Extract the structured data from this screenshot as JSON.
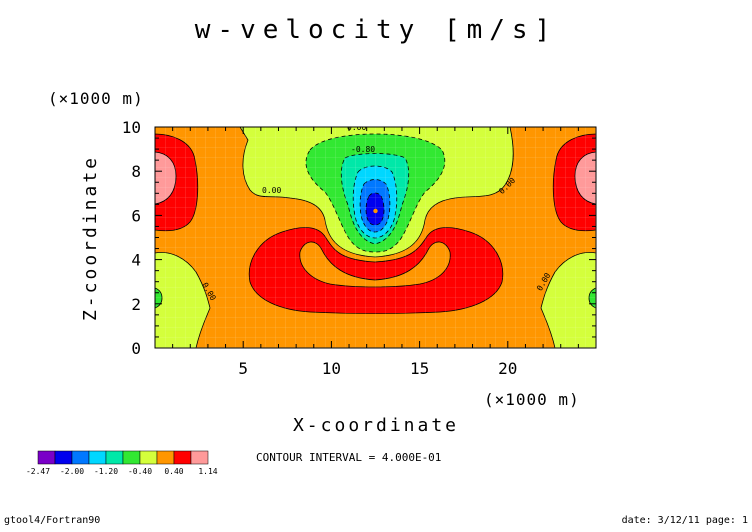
{
  "chart_data": {
    "type": "heatmap",
    "title": "w-velocity [m/s]",
    "xlabel": "X-coordinate",
    "ylabel": "Z-coordinate",
    "x_unit": "(×1000 m)",
    "y_unit": "(×1000 m)",
    "xlim": [
      0,
      25
    ],
    "ylim": [
      0,
      10
    ],
    "x_ticks": [
      5,
      10,
      15,
      20
    ],
    "y_ticks": [
      0,
      2,
      4,
      6,
      8,
      10
    ],
    "contour_labels": [
      {
        "text": "0.00",
        "x": 11.1,
        "y": 10.0
      },
      {
        "text": "-0.80",
        "x": 11.0,
        "y": 9.0
      },
      {
        "text": "0.00",
        "x": 5.2,
        "y": 7.0
      },
      {
        "text": "0.00",
        "x": 19.7,
        "y": 7.4
      },
      {
        "text": "0.00",
        "x": 2.3,
        "y": 2.5
      },
      {
        "text": "0.00",
        "x": 21.7,
        "y": 2.5
      }
    ],
    "min_region": {
      "x": 12.5,
      "y": 6.2
    },
    "colorbar": {
      "colors": [
        "#7a00c8",
        "#0000ee",
        "#0078ff",
        "#00d7ff",
        "#00e8a8",
        "#32e832",
        "#d4ff3c",
        "#ff9600",
        "#ff0000",
        "#ff9a9a"
      ],
      "labels": [
        "-2.47",
        "-2.00",
        "-1.20",
        "-0.40",
        "0.40",
        "1.14"
      ]
    },
    "contour_interval": "CONTOUR INTERVAL = 4.000E-01"
  },
  "footer": {
    "left": "gtool4/Fortran90",
    "right": "date: 3/12/11 page: 1"
  }
}
